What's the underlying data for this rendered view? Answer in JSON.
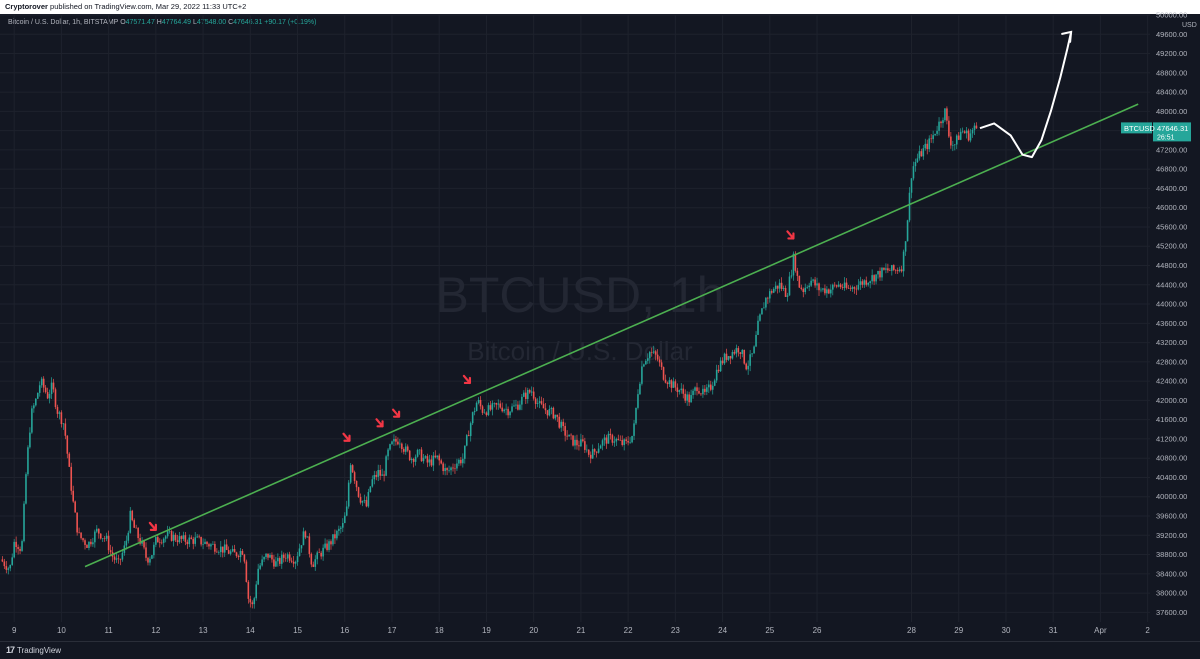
{
  "header": {
    "author": "Cryptorover",
    "published": "published on TradingView.com, Mar 29, 2022 11:33 UTC+2"
  },
  "legend": {
    "title": "Bitcoin / U.S. Dollar, 1h, BITSTAMP",
    "o_label": "O",
    "o_value": "47571.47",
    "h_label": "H",
    "h_value": "47764.49",
    "l_label": "L",
    "l_value": "47548.00",
    "c_label": "C",
    "c_value": "47646.31",
    "change": "+90.17 (+0.19%)"
  },
  "watermark": {
    "symbol": "BTCUSD, 1h",
    "name": "Bitcoin / U.S. Dollar"
  },
  "price_label": {
    "symbol": "BTCUSD",
    "price": "47646.31",
    "countdown": "26:51"
  },
  "footer": {
    "brand": "TradingView"
  },
  "colors": {
    "background": "#131722",
    "up": "#26a69a",
    "down": "#ef5350",
    "trendline": "#4caf50",
    "arrow": "#f23645",
    "projection": "#ffffff",
    "grid": "#1e222d"
  },
  "chart_data": {
    "type": "candlestick",
    "title": "Bitcoin / U.S. Dollar, 1h, BITSTAMP",
    "y_unit": "USD",
    "ylim": [
      37400,
      50000
    ],
    "y_ticks": [
      37600,
      38000,
      38400,
      38800,
      39200,
      39600,
      40000,
      40400,
      40800,
      41200,
      41600,
      42000,
      42400,
      42800,
      43200,
      43600,
      44000,
      44400,
      44800,
      45200,
      45600,
      46000,
      46400,
      46800,
      47200,
      47600,
      48000,
      48400,
      48800,
      49200,
      49600,
      50000
    ],
    "x_ticks": [
      {
        "label": "9",
        "day": 9
      },
      {
        "label": "10",
        "day": 10
      },
      {
        "label": "11",
        "day": 11
      },
      {
        "label": "12",
        "day": 12
      },
      {
        "label": "13",
        "day": 13
      },
      {
        "label": "14",
        "day": 14
      },
      {
        "label": "15",
        "day": 15
      },
      {
        "label": "16",
        "day": 16
      },
      {
        "label": "17",
        "day": 17
      },
      {
        "label": "18",
        "day": 18
      },
      {
        "label": "19",
        "day": 19
      },
      {
        "label": "20",
        "day": 20
      },
      {
        "label": "21",
        "day": 21
      },
      {
        "label": "22",
        "day": 22
      },
      {
        "label": "23",
        "day": 23
      },
      {
        "label": "24",
        "day": 24
      },
      {
        "label": "25",
        "day": 25
      },
      {
        "label": "26",
        "day": 26
      },
      {
        "label": "28",
        "day": 28
      },
      {
        "label": "29",
        "day": 29
      },
      {
        "label": "30",
        "day": 30
      },
      {
        "label": "31",
        "day": 31
      },
      {
        "label": "Apr",
        "day": 32
      },
      {
        "label": "2",
        "day": 33
      }
    ],
    "xlim_days": [
      8.7,
      33.05
    ],
    "last_price": 47646.31,
    "anchors": [
      [
        8.75,
        38700
      ],
      [
        8.95,
        38500
      ],
      [
        9.05,
        39100
      ],
      [
        9.2,
        38900
      ],
      [
        9.3,
        40600
      ],
      [
        9.4,
        41700
      ],
      [
        9.5,
        42000
      ],
      [
        9.6,
        42400
      ],
      [
        9.75,
        42100
      ],
      [
        9.85,
        42300
      ],
      [
        9.95,
        41800
      ],
      [
        10.1,
        41500
      ],
      [
        10.2,
        40600
      ],
      [
        10.3,
        39800
      ],
      [
        10.4,
        39200
      ],
      [
        10.6,
        39000
      ],
      [
        10.8,
        39300
      ],
      [
        11.0,
        39100
      ],
      [
        11.1,
        38800
      ],
      [
        11.25,
        38600
      ],
      [
        11.4,
        39000
      ],
      [
        11.5,
        39600
      ],
      [
        11.6,
        39300
      ],
      [
        11.75,
        39000
      ],
      [
        11.85,
        38700
      ],
      [
        11.95,
        38800
      ],
      [
        12.05,
        39100
      ],
      [
        12.3,
        39200
      ],
      [
        12.6,
        39100
      ],
      [
        12.9,
        39100
      ],
      [
        13.2,
        39000
      ],
      [
        13.5,
        38900
      ],
      [
        13.7,
        38800
      ],
      [
        13.9,
        38900
      ],
      [
        14.0,
        37900
      ],
      [
        14.1,
        37700
      ],
      [
        14.2,
        38500
      ],
      [
        14.4,
        38800
      ],
      [
        14.6,
        38600
      ],
      [
        14.8,
        38800
      ],
      [
        15.0,
        38700
      ],
      [
        15.2,
        39300
      ],
      [
        15.35,
        38600
      ],
      [
        15.5,
        38800
      ],
      [
        15.7,
        39000
      ],
      [
        15.85,
        39200
      ],
      [
        16.0,
        39400
      ],
      [
        16.1,
        39800
      ],
      [
        16.15,
        40800
      ],
      [
        16.25,
        40400
      ],
      [
        16.35,
        40000
      ],
      [
        16.5,
        39800
      ],
      [
        16.6,
        40300
      ],
      [
        16.75,
        40500
      ],
      [
        16.85,
        40400
      ],
      [
        16.95,
        40900
      ],
      [
        17.05,
        41100
      ],
      [
        17.2,
        41200
      ],
      [
        17.3,
        41000
      ],
      [
        17.45,
        40800
      ],
      [
        17.6,
        40900
      ],
      [
        17.8,
        40700
      ],
      [
        18.0,
        40800
      ],
      [
        18.2,
        40500
      ],
      [
        18.4,
        40700
      ],
      [
        18.55,
        40800
      ],
      [
        18.65,
        41300
      ],
      [
        18.75,
        41700
      ],
      [
        18.85,
        42000
      ],
      [
        18.95,
        41800
      ],
      [
        19.1,
        41800
      ],
      [
        19.3,
        41900
      ],
      [
        19.5,
        41800
      ],
      [
        19.7,
        41900
      ],
      [
        19.85,
        42100
      ],
      [
        20.0,
        42200
      ],
      [
        20.15,
        41900
      ],
      [
        20.3,
        41800
      ],
      [
        20.5,
        41700
      ],
      [
        20.65,
        41400
      ],
      [
        20.8,
        41200
      ],
      [
        20.95,
        41100
      ],
      [
        21.1,
        41100
      ],
      [
        21.2,
        40900
      ],
      [
        21.3,
        40900
      ],
      [
        21.45,
        41100
      ],
      [
        21.6,
        41200
      ],
      [
        21.75,
        41200
      ],
      [
        21.9,
        41100
      ],
      [
        22.0,
        41100
      ],
      [
        22.15,
        41300
      ],
      [
        22.25,
        42200
      ],
      [
        22.35,
        42800
      ],
      [
        22.5,
        43000
      ],
      [
        22.65,
        42900
      ],
      [
        22.8,
        42500
      ],
      [
        23.0,
        42300
      ],
      [
        23.15,
        42200
      ],
      [
        23.35,
        42000
      ],
      [
        23.5,
        42300
      ],
      [
        23.65,
        42100
      ],
      [
        23.8,
        42300
      ],
      [
        23.95,
        42700
      ],
      [
        24.1,
        42900
      ],
      [
        24.25,
        43000
      ],
      [
        24.4,
        43100
      ],
      [
        24.55,
        42700
      ],
      [
        24.7,
        43000
      ],
      [
        24.8,
        43600
      ],
      [
        24.95,
        44100
      ],
      [
        25.1,
        44300
      ],
      [
        25.25,
        44400
      ],
      [
        25.4,
        44200
      ],
      [
        25.5,
        44700
      ],
      [
        25.55,
        45000
      ],
      [
        25.65,
        44400
      ],
      [
        25.75,
        44300
      ],
      [
        25.9,
        44500
      ],
      [
        26.1,
        44300
      ],
      [
        26.3,
        44300
      ],
      [
        26.5,
        44400
      ],
      [
        26.7,
        44300
      ],
      [
        26.9,
        44400
      ],
      [
        27.1,
        44500
      ],
      [
        27.3,
        44600
      ],
      [
        27.5,
        44700
      ],
      [
        27.7,
        44700
      ],
      [
        27.85,
        44800
      ],
      [
        27.95,
        45700
      ],
      [
        28.05,
        46800
      ],
      [
        28.15,
        47000
      ],
      [
        28.3,
        47200
      ],
      [
        28.45,
        47400
      ],
      [
        28.6,
        47700
      ],
      [
        28.75,
        48000
      ],
      [
        28.85,
        47400
      ],
      [
        28.95,
        47300
      ],
      [
        29.1,
        47600
      ],
      [
        29.25,
        47500
      ],
      [
        29.38,
        47646
      ]
    ],
    "trendline": {
      "start": [
        10.5,
        38550
      ],
      "end": [
        32.8,
        48150
      ]
    },
    "arrows": [
      {
        "day": 12.0,
        "price": 39250
      },
      {
        "day": 16.1,
        "price": 41100
      },
      {
        "day": 16.8,
        "price": 41400
      },
      {
        "day": 17.15,
        "price": 41600
      },
      {
        "day": 18.65,
        "price": 42300
      },
      {
        "day": 25.5,
        "price": 45300
      }
    ],
    "projection": [
      [
        29.45,
        47650
      ],
      [
        29.75,
        47750
      ],
      [
        30.1,
        47500
      ],
      [
        30.35,
        47100
      ],
      [
        30.55,
        47050
      ],
      [
        30.75,
        47400
      ],
      [
        30.95,
        48000
      ],
      [
        31.15,
        48700
      ],
      [
        31.3,
        49300
      ],
      [
        31.38,
        49650
      ]
    ]
  }
}
